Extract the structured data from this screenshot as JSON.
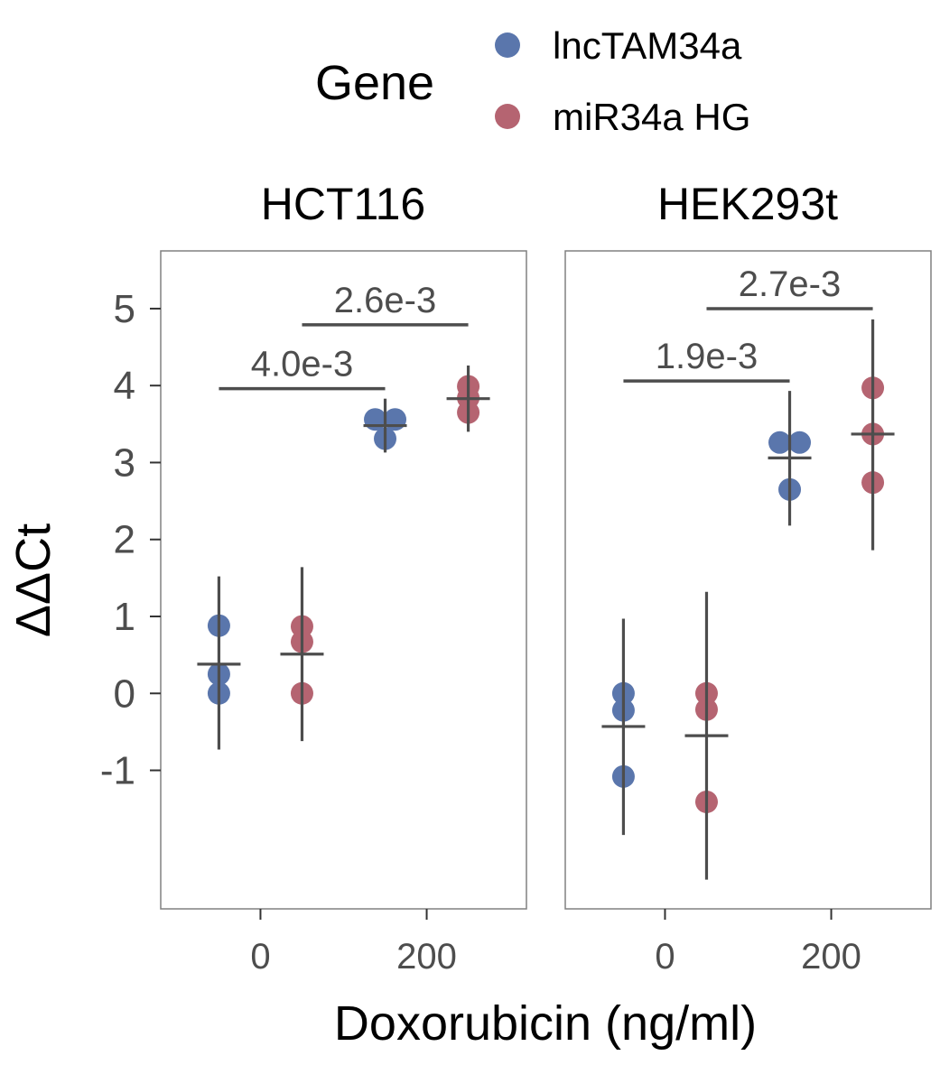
{
  "legend": {
    "title": "Gene",
    "entries": [
      {
        "label": "lncTAM34a",
        "color": "#5A76AC"
      },
      {
        "label": "miR34a HG",
        "color": "#B56471"
      }
    ]
  },
  "chart_data": {
    "type": "scatter",
    "xlabel": "Doxorubicin (ng/ml)",
    "ylabel": "ΔΔCt",
    "x_ticks": [
      0,
      200
    ],
    "x_tick_labels": [
      "0",
      "200"
    ],
    "y_ticks": [
      -1,
      0,
      1,
      2,
      3,
      4,
      5
    ],
    "y_tick_labels": [
      "-1",
      "0",
      "1",
      "2",
      "3",
      "4",
      "5"
    ],
    "xlim": [
      -120,
      320
    ],
    "ylim": [
      -2.8,
      5.75
    ],
    "legend_position": "top",
    "grid": false,
    "dodge": 50,
    "panels": [
      {
        "title": "HCT116",
        "groups": [
          {
            "gene": "lncTAM34a",
            "dose": 0,
            "points": [
              0.88,
              0.25,
              0.0
            ],
            "mean": 0.38,
            "err_low": -0.73,
            "err_high": 1.52
          },
          {
            "gene": "miR34a HG",
            "dose": 0,
            "points": [
              0.87,
              0.67,
              0.0
            ],
            "mean": 0.51,
            "err_low": -0.62,
            "err_high": 1.64
          },
          {
            "gene": "lncTAM34a",
            "dose": 200,
            "points": [
              3.56,
              3.56,
              3.31
            ],
            "mean": 3.48,
            "err_low": 3.13,
            "err_high": 3.83
          },
          {
            "gene": "miR34a HG",
            "dose": 200,
            "points": [
              3.99,
              3.84,
              3.65
            ],
            "mean": 3.83,
            "err_low": 3.4,
            "err_high": 4.26
          }
        ],
        "annotations": [
          {
            "label": "4.0e-3",
            "x1": -50,
            "x2": 150,
            "y": 3.96
          },
          {
            "label": "2.6e-3",
            "x1": 50,
            "x2": 250,
            "y": 4.79
          }
        ]
      },
      {
        "title": "HEK293t",
        "groups": [
          {
            "gene": "lncTAM34a",
            "dose": 0,
            "points": [
              0.0,
              -0.22,
              -1.08
            ],
            "mean": -0.43,
            "err_low": -1.84,
            "err_high": 0.97
          },
          {
            "gene": "miR34a HG",
            "dose": 0,
            "points": [
              0.0,
              -0.21,
              -1.41
            ],
            "mean": -0.55,
            "err_low": -2.42,
            "err_high": 1.32
          },
          {
            "gene": "lncTAM34a",
            "dose": 200,
            "points": [
              3.26,
              3.26,
              2.65
            ],
            "mean": 3.06,
            "err_low": 2.18,
            "err_high": 3.93
          },
          {
            "gene": "miR34a HG",
            "dose": 200,
            "points": [
              3.97,
              3.37,
              2.74
            ],
            "mean": 3.37,
            "err_low": 1.86,
            "err_high": 4.86
          }
        ],
        "annotations": [
          {
            "label": "1.9e-3",
            "x1": -50,
            "x2": 150,
            "y": 4.06
          },
          {
            "label": "2.7e-3",
            "x1": 50,
            "x2": 250,
            "y": 5.0
          }
        ]
      }
    ]
  }
}
